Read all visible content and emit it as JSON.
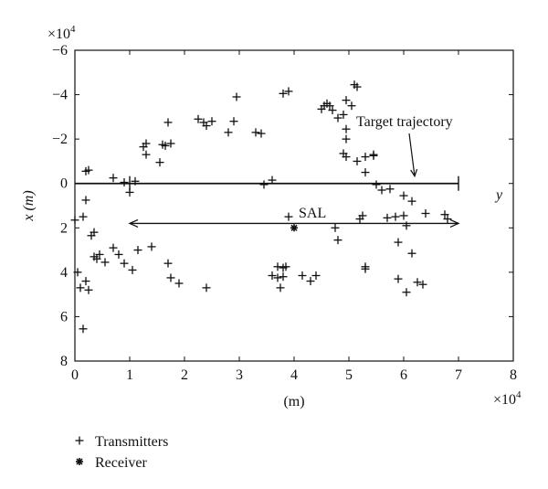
{
  "chart_data": {
    "type": "scatter",
    "xlabel": "(m)",
    "ylabel": "x (m)",
    "x_multiplier_label": "×10",
    "x_multiplier_exp": "4",
    "y_multiplier_label": "×10",
    "y_multiplier_exp": "4",
    "xlim": [
      0,
      8
    ],
    "ylim": [
      -6,
      8
    ],
    "y_inverted": true,
    "grid": false,
    "xticks": [
      0,
      1,
      2,
      3,
      4,
      5,
      6,
      7,
      8
    ],
    "yticks": [
      -6,
      -4,
      -2,
      0,
      2,
      4,
      6,
      8
    ],
    "legend_position": "bottom-left",
    "legend": [
      {
        "label": "Transmitters",
        "marker": "plus"
      },
      {
        "label": "Receiver",
        "marker": "asterisk"
      }
    ],
    "annotations": {
      "target_label": "Target trajectory",
      "sal_label": "SAL",
      "y_axis_tag": "y",
      "sal_range": [
        1,
        7
      ],
      "sal_y": 1.8
    },
    "trajectory": {
      "x": [
        0,
        7
      ],
      "y": [
        0,
        0
      ],
      "endpoint_ticks": [
        1,
        7
      ]
    },
    "receiver": {
      "x": 4.0,
      "y": 2.0
    },
    "transmitters": [
      [
        0.0,
        1.65
      ],
      [
        0.05,
        4.0
      ],
      [
        0.1,
        4.7
      ],
      [
        0.15,
        1.5
      ],
      [
        0.2,
        4.4
      ],
      [
        0.15,
        6.55
      ],
      [
        0.2,
        0.75
      ],
      [
        0.2,
        -0.55
      ],
      [
        0.25,
        -0.6
      ],
      [
        0.25,
        4.8
      ],
      [
        0.3,
        2.35
      ],
      [
        0.35,
        2.2
      ],
      [
        0.35,
        3.3
      ],
      [
        0.4,
        3.4
      ],
      [
        0.45,
        3.2
      ],
      [
        0.55,
        3.55
      ],
      [
        0.7,
        -0.25
      ],
      [
        0.7,
        2.9
      ],
      [
        0.8,
        3.2
      ],
      [
        0.9,
        -0.05
      ],
      [
        0.9,
        3.6
      ],
      [
        1.0,
        0.4
      ],
      [
        1.05,
        3.9
      ],
      [
        1.1,
        -0.1
      ],
      [
        1.15,
        3.0
      ],
      [
        1.25,
        -1.65
      ],
      [
        1.3,
        -1.3
      ],
      [
        1.3,
        -1.8
      ],
      [
        1.4,
        2.85
      ],
      [
        1.55,
        -0.95
      ],
      [
        1.6,
        -1.75
      ],
      [
        1.65,
        -1.7
      ],
      [
        1.7,
        -2.75
      ],
      [
        1.7,
        3.6
      ],
      [
        1.75,
        -1.8
      ],
      [
        1.75,
        4.25
      ],
      [
        1.9,
        4.5
      ],
      [
        2.25,
        -2.9
      ],
      [
        2.35,
        -2.75
      ],
      [
        2.4,
        -2.6
      ],
      [
        2.4,
        4.7
      ],
      [
        2.5,
        -2.8
      ],
      [
        2.8,
        -2.3
      ],
      [
        2.9,
        -2.8
      ],
      [
        2.95,
        -3.9
      ],
      [
        3.3,
        -2.3
      ],
      [
        3.4,
        -2.25
      ],
      [
        3.45,
        0.05
      ],
      [
        3.6,
        -0.15
      ],
      [
        3.6,
        4.15
      ],
      [
        3.7,
        4.25
      ],
      [
        3.7,
        3.75
      ],
      [
        3.75,
        4.7
      ],
      [
        3.8,
        3.8
      ],
      [
        3.8,
        4.2
      ],
      [
        3.8,
        -4.05
      ],
      [
        3.85,
        3.75
      ],
      [
        3.9,
        -4.15
      ],
      [
        3.9,
        1.5
      ],
      [
        4.15,
        4.15
      ],
      [
        4.3,
        4.4
      ],
      [
        4.4,
        4.15
      ],
      [
        4.5,
        -3.35
      ],
      [
        4.55,
        -3.5
      ],
      [
        4.6,
        -3.6
      ],
      [
        4.65,
        -3.5
      ],
      [
        4.7,
        -3.3
      ],
      [
        4.75,
        2.0
      ],
      [
        4.8,
        2.55
      ],
      [
        4.8,
        -2.95
      ],
      [
        4.9,
        -3.1
      ],
      [
        4.9,
        -1.35
      ],
      [
        4.95,
        -1.2
      ],
      [
        4.95,
        -3.75
      ],
      [
        4.95,
        -2.45
      ],
      [
        4.95,
        -2.0
      ],
      [
        5.05,
        -3.5
      ],
      [
        5.1,
        -4.45
      ],
      [
        5.15,
        -1.0
      ],
      [
        5.15,
        -4.35
      ],
      [
        5.2,
        1.6
      ],
      [
        5.25,
        1.45
      ],
      [
        5.3,
        3.75
      ],
      [
        5.3,
        3.85
      ],
      [
        5.3,
        -1.2
      ],
      [
        5.3,
        -0.5
      ],
      [
        5.45,
        -1.3
      ],
      [
        5.45,
        -1.25
      ],
      [
        5.5,
        0.05
      ],
      [
        5.6,
        0.3
      ],
      [
        5.7,
        1.55
      ],
      [
        5.75,
        0.25
      ],
      [
        5.85,
        1.5
      ],
      [
        5.9,
        4.3
      ],
      [
        5.9,
        2.65
      ],
      [
        6.0,
        1.45
      ],
      [
        6.0,
        0.55
      ],
      [
        6.05,
        4.9
      ],
      [
        6.05,
        1.9
      ],
      [
        6.15,
        3.15
      ],
      [
        6.15,
        0.8
      ],
      [
        6.25,
        4.45
      ],
      [
        6.35,
        4.55
      ],
      [
        6.4,
        1.35
      ],
      [
        6.75,
        1.4
      ],
      [
        6.8,
        1.6
      ]
    ]
  }
}
